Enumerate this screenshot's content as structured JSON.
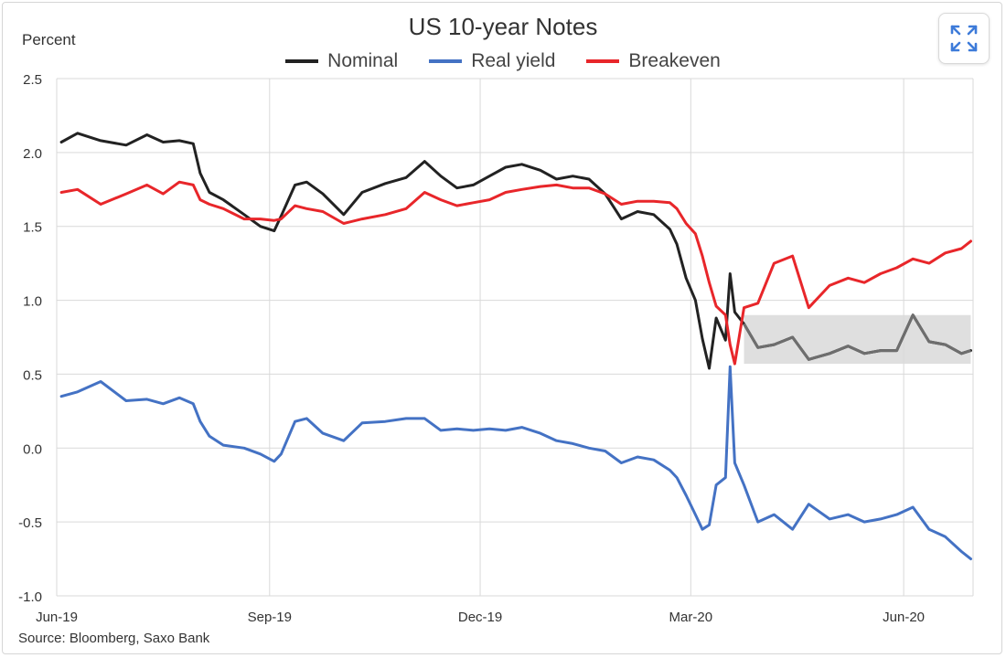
{
  "ui": {
    "expand_icon": "expand-icon"
  },
  "chart_data": {
    "type": "line",
    "title": "US 10-year Notes",
    "ylabel": "Percent",
    "source": "Source: Bloomberg, Saxo Bank",
    "ylim": [
      -1.0,
      2.5
    ],
    "y_ticks": [
      "2.5",
      "2.0",
      "1.5",
      "1.0",
      "0.5",
      "0.0",
      "-0.5",
      "-1.0"
    ],
    "x_ticks": [
      "Jun-19",
      "Sep-19",
      "Dec-19",
      "Mar-20",
      "Jun-20"
    ],
    "grid": true,
    "legend_position": "top-center",
    "highlight_band": {
      "x_start": "2020-03-24",
      "x_end": "2020-06-30",
      "y_low": 0.57,
      "y_high": 0.9,
      "color": "#d9d9d9"
    },
    "series": [
      {
        "name": "Nominal",
        "color": "#222222",
        "x": [
          "2019-06-03",
          "2019-06-10",
          "2019-06-20",
          "2019-07-01",
          "2019-07-10",
          "2019-07-17",
          "2019-07-24",
          "2019-07-30",
          "2019-08-02",
          "2019-08-06",
          "2019-08-12",
          "2019-08-21",
          "2019-08-28",
          "2019-09-03",
          "2019-09-06",
          "2019-09-12",
          "2019-09-17",
          "2019-09-24",
          "2019-10-03",
          "2019-10-11",
          "2019-10-21",
          "2019-10-30",
          "2019-11-07",
          "2019-11-14",
          "2019-11-21",
          "2019-11-28",
          "2019-12-05",
          "2019-12-12",
          "2019-12-19",
          "2019-12-27",
          "2020-01-03",
          "2020-01-10",
          "2020-01-17",
          "2020-01-24",
          "2020-01-31",
          "2020-02-07",
          "2020-02-14",
          "2020-02-21",
          "2020-02-24",
          "2020-02-28",
          "2020-03-03",
          "2020-03-06",
          "2020-03-09",
          "2020-03-12",
          "2020-03-16",
          "2020-03-18",
          "2020-03-20",
          "2020-03-24",
          "2020-03-30",
          "2020-04-06",
          "2020-04-14",
          "2020-04-21",
          "2020-04-30",
          "2020-05-08",
          "2020-05-15",
          "2020-05-22",
          "2020-05-29",
          "2020-06-05",
          "2020-06-12",
          "2020-06-19",
          "2020-06-26",
          "2020-06-30"
        ],
        "values": [
          2.07,
          2.13,
          2.08,
          2.05,
          2.12,
          2.07,
          2.08,
          2.06,
          1.86,
          1.73,
          1.68,
          1.58,
          1.5,
          1.47,
          1.57,
          1.78,
          1.8,
          1.72,
          1.58,
          1.73,
          1.79,
          1.83,
          1.94,
          1.84,
          1.76,
          1.78,
          1.84,
          1.9,
          1.92,
          1.88,
          1.82,
          1.84,
          1.82,
          1.72,
          1.55,
          1.6,
          1.58,
          1.48,
          1.38,
          1.15,
          1.0,
          0.74,
          0.54,
          0.88,
          0.73,
          1.18,
          0.92,
          0.84,
          0.68,
          0.7,
          0.75,
          0.6,
          0.64,
          0.69,
          0.64,
          0.66,
          0.66,
          0.9,
          0.72,
          0.7,
          0.64,
          0.66
        ]
      },
      {
        "name": "Real yield",
        "color": "#4472C4",
        "x": [
          "2019-06-03",
          "2019-06-10",
          "2019-06-20",
          "2019-07-01",
          "2019-07-10",
          "2019-07-17",
          "2019-07-24",
          "2019-07-30",
          "2019-08-02",
          "2019-08-06",
          "2019-08-12",
          "2019-08-21",
          "2019-08-28",
          "2019-09-03",
          "2019-09-06",
          "2019-09-12",
          "2019-09-17",
          "2019-09-24",
          "2019-10-03",
          "2019-10-11",
          "2019-10-21",
          "2019-10-30",
          "2019-11-07",
          "2019-11-14",
          "2019-11-21",
          "2019-11-28",
          "2019-12-05",
          "2019-12-12",
          "2019-12-19",
          "2019-12-27",
          "2020-01-03",
          "2020-01-10",
          "2020-01-17",
          "2020-01-24",
          "2020-01-31",
          "2020-02-07",
          "2020-02-14",
          "2020-02-21",
          "2020-02-24",
          "2020-02-28",
          "2020-03-03",
          "2020-03-06",
          "2020-03-09",
          "2020-03-12",
          "2020-03-16",
          "2020-03-18",
          "2020-03-20",
          "2020-03-24",
          "2020-03-30",
          "2020-04-06",
          "2020-04-14",
          "2020-04-21",
          "2020-04-30",
          "2020-05-08",
          "2020-05-15",
          "2020-05-22",
          "2020-05-29",
          "2020-06-05",
          "2020-06-12",
          "2020-06-19",
          "2020-06-26",
          "2020-06-30"
        ],
        "values": [
          0.35,
          0.38,
          0.45,
          0.32,
          0.33,
          0.3,
          0.34,
          0.3,
          0.18,
          0.08,
          0.02,
          0.0,
          -0.04,
          -0.09,
          -0.04,
          0.18,
          0.2,
          0.1,
          0.05,
          0.17,
          0.18,
          0.2,
          0.2,
          0.12,
          0.13,
          0.12,
          0.13,
          0.12,
          0.14,
          0.1,
          0.05,
          0.03,
          0.0,
          -0.02,
          -0.1,
          -0.06,
          -0.08,
          -0.15,
          -0.2,
          -0.32,
          -0.45,
          -0.55,
          -0.52,
          -0.25,
          -0.2,
          0.55,
          -0.1,
          -0.25,
          -0.5,
          -0.45,
          -0.55,
          -0.38,
          -0.48,
          -0.45,
          -0.5,
          -0.48,
          -0.45,
          -0.4,
          -0.55,
          -0.6,
          -0.7,
          -0.75
        ]
      },
      {
        "name": "Breakeven",
        "color": "#E8262A",
        "x": [
          "2019-06-03",
          "2019-06-10",
          "2019-06-20",
          "2019-07-01",
          "2019-07-10",
          "2019-07-17",
          "2019-07-24",
          "2019-07-30",
          "2019-08-02",
          "2019-08-06",
          "2019-08-12",
          "2019-08-21",
          "2019-08-28",
          "2019-09-03",
          "2019-09-06",
          "2019-09-12",
          "2019-09-17",
          "2019-09-24",
          "2019-10-03",
          "2019-10-11",
          "2019-10-21",
          "2019-10-30",
          "2019-11-07",
          "2019-11-14",
          "2019-11-21",
          "2019-11-28",
          "2019-12-05",
          "2019-12-12",
          "2019-12-19",
          "2019-12-27",
          "2020-01-03",
          "2020-01-10",
          "2020-01-17",
          "2020-01-24",
          "2020-01-31",
          "2020-02-07",
          "2020-02-14",
          "2020-02-21",
          "2020-02-24",
          "2020-02-28",
          "2020-03-03",
          "2020-03-06",
          "2020-03-09",
          "2020-03-12",
          "2020-03-16",
          "2020-03-18",
          "2020-03-20",
          "2020-03-24",
          "2020-03-30",
          "2020-04-06",
          "2020-04-14",
          "2020-04-21",
          "2020-04-30",
          "2020-05-08",
          "2020-05-15",
          "2020-05-22",
          "2020-05-29",
          "2020-06-05",
          "2020-06-12",
          "2020-06-19",
          "2020-06-26",
          "2020-06-30"
        ],
        "values": [
          1.73,
          1.75,
          1.65,
          1.72,
          1.78,
          1.72,
          1.8,
          1.78,
          1.68,
          1.65,
          1.62,
          1.55,
          1.55,
          1.54,
          1.55,
          1.64,
          1.62,
          1.6,
          1.52,
          1.55,
          1.58,
          1.62,
          1.73,
          1.68,
          1.64,
          1.66,
          1.68,
          1.73,
          1.75,
          1.77,
          1.78,
          1.76,
          1.76,
          1.72,
          1.65,
          1.67,
          1.67,
          1.66,
          1.62,
          1.52,
          1.45,
          1.3,
          1.12,
          0.96,
          0.9,
          0.7,
          0.57,
          0.95,
          0.98,
          1.25,
          1.3,
          0.95,
          1.1,
          1.15,
          1.12,
          1.18,
          1.22,
          1.28,
          1.25,
          1.32,
          1.35,
          1.4
        ]
      }
    ]
  }
}
